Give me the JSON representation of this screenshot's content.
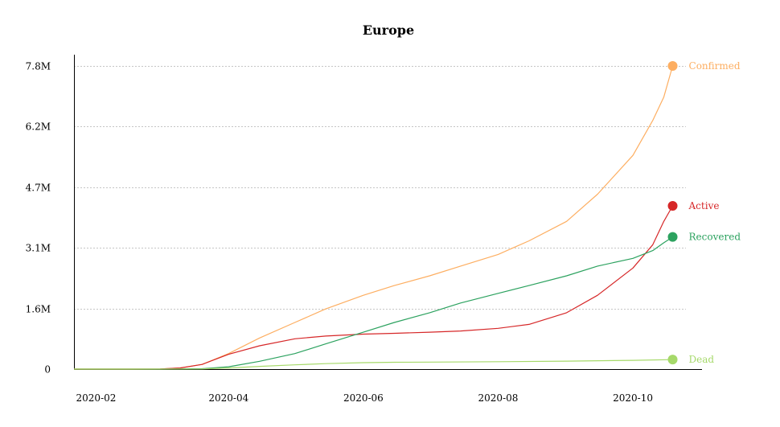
{
  "chart_data": {
    "type": "line",
    "title": "Europe",
    "xlabel": "",
    "ylabel": "",
    "x_tick_labels": [
      "2020-02",
      "2020-04",
      "2020-06",
      "2020-08",
      "2020-10"
    ],
    "y_tick_labels": [
      "0",
      "1.6M",
      "3.1M",
      "4.7M",
      "6.2M",
      "7.8M"
    ],
    "y_tick_values": [
      0,
      1560000,
      3120000,
      4680000,
      6240000,
      7800000
    ],
    "xlim": [
      "2020-01-22",
      "2020-10-25"
    ],
    "ylim": [
      0,
      7800000
    ],
    "grid": true,
    "legend_placement": "right-end-of-lines",
    "x_tick_dates": [
      "2020-02-01",
      "2020-04-01",
      "2020-06-01",
      "2020-08-01",
      "2020-10-01"
    ],
    "series": [
      {
        "name": "Confirmed",
        "color": "#fdae61",
        "points": [
          [
            "2020-01-22",
            0
          ],
          [
            "2020-02-15",
            500
          ],
          [
            "2020-03-01",
            3000
          ],
          [
            "2020-03-10",
            30000
          ],
          [
            "2020-03-20",
            120000
          ],
          [
            "2020-04-01",
            400000
          ],
          [
            "2020-04-15",
            800000
          ],
          [
            "2020-05-01",
            1200000
          ],
          [
            "2020-05-15",
            1550000
          ],
          [
            "2020-06-01",
            1900000
          ],
          [
            "2020-06-15",
            2150000
          ],
          [
            "2020-07-01",
            2400000
          ],
          [
            "2020-07-15",
            2650000
          ],
          [
            "2020-08-01",
            2950000
          ],
          [
            "2020-08-15",
            3300000
          ],
          [
            "2020-09-01",
            3800000
          ],
          [
            "2020-09-15",
            4500000
          ],
          [
            "2020-10-01",
            5500000
          ],
          [
            "2020-10-10",
            6400000
          ],
          [
            "2020-10-15",
            7000000
          ],
          [
            "2020-10-19",
            7800000
          ]
        ]
      },
      {
        "name": "Active",
        "color": "#d62728",
        "points": [
          [
            "2020-01-22",
            0
          ],
          [
            "2020-02-15",
            500
          ],
          [
            "2020-03-01",
            3000
          ],
          [
            "2020-03-10",
            30000
          ],
          [
            "2020-03-20",
            120000
          ],
          [
            "2020-04-01",
            380000
          ],
          [
            "2020-04-15",
            600000
          ],
          [
            "2020-05-01",
            780000
          ],
          [
            "2020-05-15",
            850000
          ],
          [
            "2020-06-01",
            900000
          ],
          [
            "2020-06-15",
            920000
          ],
          [
            "2020-07-01",
            950000
          ],
          [
            "2020-07-15",
            980000
          ],
          [
            "2020-08-01",
            1050000
          ],
          [
            "2020-08-15",
            1150000
          ],
          [
            "2020-09-01",
            1450000
          ],
          [
            "2020-09-15",
            1900000
          ],
          [
            "2020-10-01",
            2600000
          ],
          [
            "2020-10-10",
            3200000
          ],
          [
            "2020-10-15",
            3800000
          ],
          [
            "2020-10-19",
            4200000
          ]
        ]
      },
      {
        "name": "Recovered",
        "color": "#2ca25f",
        "points": [
          [
            "2020-01-22",
            0
          ],
          [
            "2020-03-01",
            0
          ],
          [
            "2020-03-20",
            10000
          ],
          [
            "2020-04-01",
            60000
          ],
          [
            "2020-04-15",
            200000
          ],
          [
            "2020-05-01",
            400000
          ],
          [
            "2020-05-15",
            650000
          ],
          [
            "2020-06-01",
            950000
          ],
          [
            "2020-06-15",
            1200000
          ],
          [
            "2020-07-01",
            1450000
          ],
          [
            "2020-07-15",
            1700000
          ],
          [
            "2020-08-01",
            1950000
          ],
          [
            "2020-08-15",
            2150000
          ],
          [
            "2020-09-01",
            2400000
          ],
          [
            "2020-09-15",
            2650000
          ],
          [
            "2020-10-01",
            2850000
          ],
          [
            "2020-10-10",
            3050000
          ],
          [
            "2020-10-15",
            3250000
          ],
          [
            "2020-10-19",
            3400000
          ]
        ]
      },
      {
        "name": "Dead",
        "color": "#a6d96a",
        "points": [
          [
            "2020-01-22",
            0
          ],
          [
            "2020-03-01",
            0
          ],
          [
            "2020-03-20",
            5000
          ],
          [
            "2020-04-01",
            30000
          ],
          [
            "2020-04-15",
            70000
          ],
          [
            "2020-05-01",
            110000
          ],
          [
            "2020-05-15",
            140000
          ],
          [
            "2020-06-01",
            165000
          ],
          [
            "2020-06-15",
            175000
          ],
          [
            "2020-07-01",
            180000
          ],
          [
            "2020-08-01",
            190000
          ],
          [
            "2020-09-01",
            205000
          ],
          [
            "2020-10-01",
            225000
          ],
          [
            "2020-10-19",
            245000
          ]
        ]
      }
    ]
  }
}
